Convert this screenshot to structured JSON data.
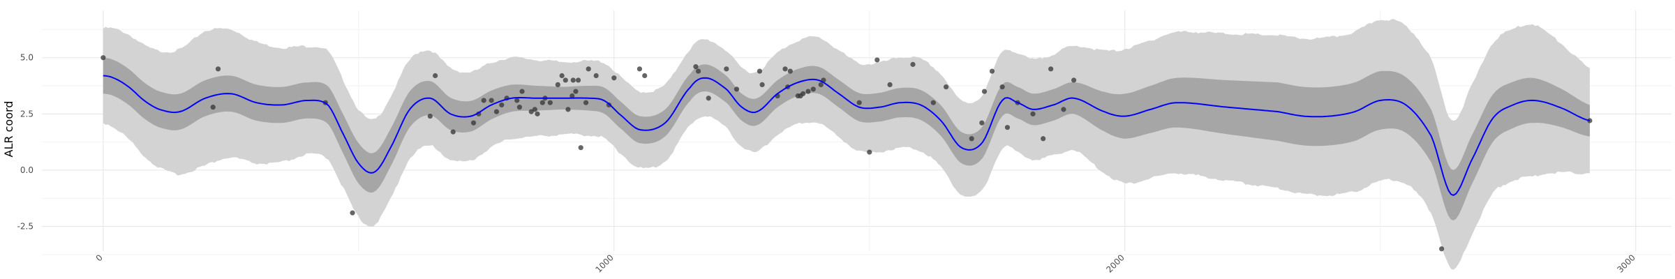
{
  "chart_data": {
    "type": "line",
    "title": "",
    "xlabel": "",
    "ylabel": "ALR coord",
    "xlim": [
      -120,
      3070
    ],
    "ylim": [
      -3.6,
      7.1
    ],
    "x_ticks": [
      0,
      1000,
      2000,
      3000
    ],
    "x_tick_labels": [
      "0",
      "1000",
      "2000",
      "3000"
    ],
    "y_ticks": [
      -2.5,
      0.0,
      2.5,
      5.0
    ],
    "y_tick_labels": [
      "-2.5",
      "0.0",
      "2.5",
      "5.0"
    ],
    "grid": true,
    "legend": "none",
    "colors": {
      "mean_line": "#0000ff",
      "inner_band": "#a6a6a6",
      "outer_band": "#d3d3d3",
      "points": "#333333",
      "grid_major": "#e5e5e5",
      "grid_minor": "#f2f2f2"
    },
    "mean_curve": {
      "x": [
        0,
        20,
        50,
        80,
        110,
        150,
        200,
        250,
        300,
        350,
        400,
        440,
        470,
        500,
        530,
        560,
        600,
        640,
        680,
        720,
        760,
        800,
        850,
        900,
        950,
        980,
        1010,
        1050,
        1100,
        1150,
        1180,
        1220,
        1250,
        1280,
        1320,
        1360,
        1400,
        1440,
        1480,
        1520,
        1560,
        1600,
        1640,
        1680,
        1720,
        1760,
        1790,
        1820,
        1860,
        1900,
        1960,
        2000,
        2050,
        2100,
        2200,
        2300,
        2350,
        2400,
        2450,
        2500,
        2550,
        2600,
        2640,
        2680,
        2720,
        2760,
        2800,
        2850,
        2910
      ],
      "y": [
        4.2,
        4.1,
        3.7,
        3.1,
        2.7,
        2.6,
        3.2,
        3.4,
        3.0,
        2.9,
        3.1,
        2.9,
        1.6,
        0.3,
        -0.1,
        0.9,
        2.7,
        3.2,
        2.5,
        2.4,
        2.9,
        3.2,
        3.2,
        3.2,
        3.2,
        3.1,
        2.5,
        1.8,
        2.1,
        3.7,
        4.1,
        3.6,
        2.8,
        2.6,
        3.4,
        3.9,
        4.0,
        3.4,
        2.8,
        2.8,
        3.0,
        2.9,
        2.2,
        1.0,
        1.2,
        3.1,
        3.0,
        2.7,
        2.9,
        3.2,
        2.6,
        2.4,
        2.7,
        3.0,
        2.8,
        2.6,
        2.4,
        2.4,
        2.6,
        3.1,
        2.9,
        1.5,
        -1.1,
        0.5,
        2.3,
        2.9,
        3.1,
        2.8,
        2.2
      ]
    },
    "inner_band_halfwidth": {
      "x": [
        0,
        400,
        500,
        900,
        1000,
        1200,
        1400,
        1700,
        1900,
        2000,
        2300,
        2500,
        2660,
        2800,
        2910
      ],
      "y": [
        0.8,
        0.8,
        0.9,
        0.5,
        0.6,
        0.6,
        0.6,
        0.7,
        0.7,
        1.0,
        1.3,
        1.3,
        1.1,
        1.0,
        0.7
      ]
    },
    "outer_band_halfwidth": {
      "x": [
        0,
        200,
        400,
        500,
        900,
        1000,
        1200,
        1400,
        1700,
        1900,
        2000,
        2300,
        2500,
        2660,
        2800,
        2910
      ],
      "y": [
        2.1,
        3.0,
        2.4,
        2.4,
        1.6,
        1.7,
        1.7,
        1.9,
        2.1,
        2.3,
        3.0,
        3.4,
        3.6,
        3.3,
        3.4,
        2.3
      ]
    },
    "points": {
      "x": [
        0,
        215,
        225,
        435,
        488,
        640,
        650,
        685,
        725,
        735,
        745,
        760,
        770,
        780,
        790,
        810,
        815,
        820,
        838,
        845,
        850,
        860,
        865,
        875,
        890,
        898,
        905,
        910,
        918,
        920,
        925,
        930,
        935,
        945,
        950,
        965,
        990,
        1000,
        1050,
        1060,
        1160,
        1165,
        1185,
        1220,
        1240,
        1285,
        1290,
        1320,
        1335,
        1340,
        1345,
        1360,
        1365,
        1370,
        1380,
        1390,
        1405,
        1410,
        1480,
        1500,
        1515,
        1540,
        1585,
        1625,
        1650,
        1700,
        1720,
        1725,
        1740,
        1760,
        1770,
        1790,
        1820,
        1840,
        1855,
        1880,
        1900,
        2620,
        2910
      ],
      "y": [
        5.0,
        2.8,
        4.5,
        3.0,
        -1.9,
        2.4,
        4.2,
        1.7,
        2.1,
        2.5,
        3.1,
        3.1,
        2.6,
        2.9,
        3.2,
        3.1,
        2.8,
        3.5,
        2.6,
        2.7,
        2.5,
        3.0,
        3.2,
        3.0,
        3.8,
        4.2,
        4.0,
        2.7,
        3.3,
        4.0,
        3.5,
        4.0,
        1.0,
        3.0,
        4.5,
        4.2,
        2.9,
        4.1,
        4.5,
        4.2,
        4.6,
        4.4,
        3.2,
        4.5,
        3.6,
        4.4,
        3.8,
        3.3,
        4.5,
        3.7,
        4.4,
        3.3,
        3.3,
        3.4,
        3.5,
        3.6,
        3.8,
        4.0,
        3.0,
        0.8,
        4.9,
        3.8,
        4.7,
        3.0,
        3.7,
        1.4,
        2.1,
        3.5,
        4.4,
        3.7,
        1.9,
        3.0,
        2.5,
        1.4,
        4.5,
        2.7,
        4.0,
        -3.5,
        2.2
      ]
    }
  }
}
